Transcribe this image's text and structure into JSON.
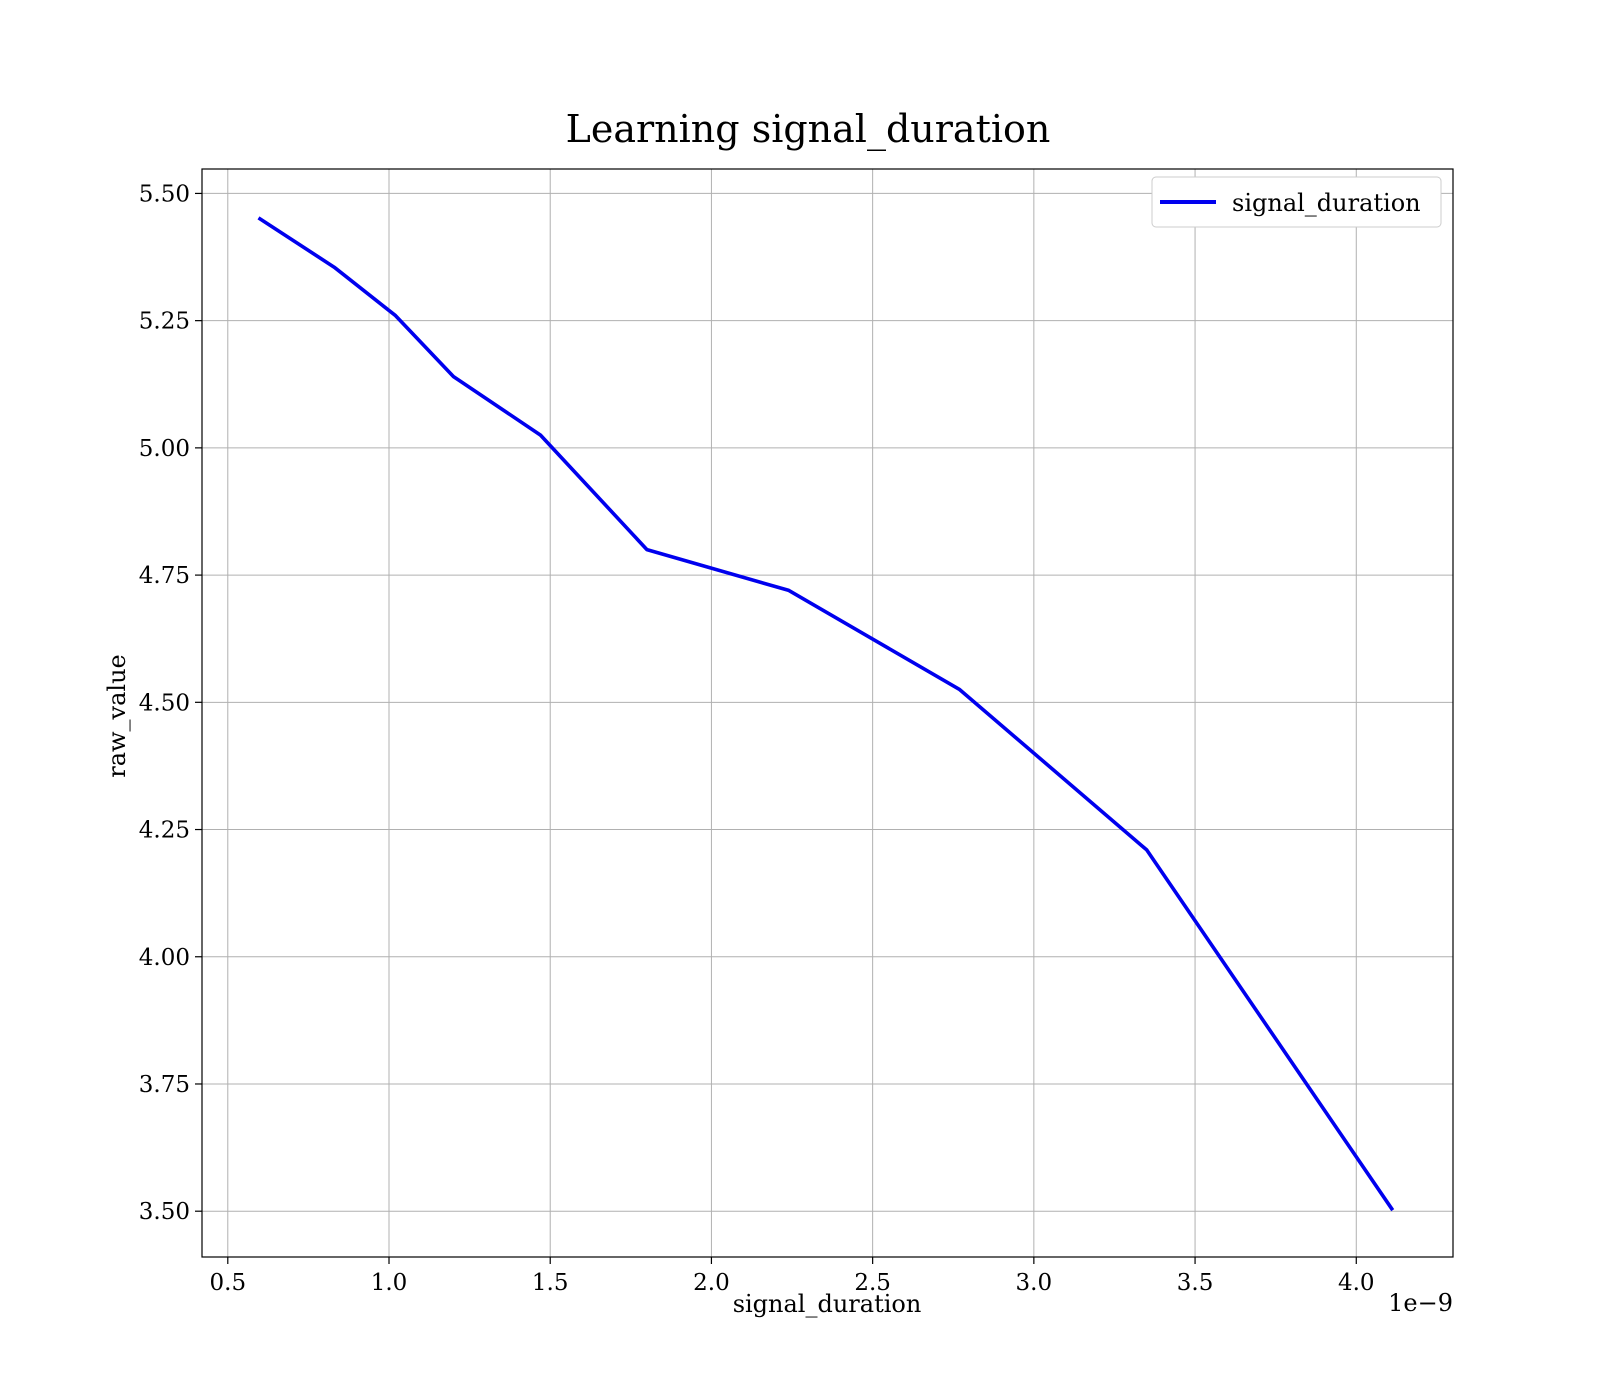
{
  "chart_data": {
    "type": "line",
    "title": "Learning signal_duration",
    "xlabel": "signal_duration",
    "ylabel": "raw_value",
    "x_offset_label": "1e−9",
    "xlim": [
      4.2e-10,
      4.3e-09
    ],
    "ylim": [
      3.41,
      5.548
    ],
    "x_ticks": [
      5e-10,
      1e-09,
      1.5e-09,
      2e-09,
      2.5e-09,
      3e-09,
      3.5e-09,
      4e-09
    ],
    "x_tick_labels": [
      "0.5",
      "1.0",
      "1.5",
      "2.0",
      "2.5",
      "3.0",
      "3.5",
      "4.0"
    ],
    "y_ticks": [
      3.5,
      3.75,
      4.0,
      4.25,
      4.5,
      4.75,
      5.0,
      5.25,
      5.5
    ],
    "y_tick_labels": [
      "3.50",
      "3.75",
      "4.00",
      "4.25",
      "4.50",
      "4.75",
      "5.00",
      "5.25",
      "5.50"
    ],
    "grid": true,
    "legend_position": "top-right",
    "series": [
      {
        "name": "signal_duration",
        "color": "#0000ee",
        "x": [
          6e-10,
          8.3e-10,
          1.02e-09,
          1.2e-09,
          1.47e-09,
          1.8e-09,
          2.24e-09,
          2.77e-09,
          3.35e-09,
          4.11e-09
        ],
        "y": [
          5.45,
          5.355,
          5.26,
          5.14,
          5.025,
          4.8,
          4.72,
          4.525,
          4.21,
          3.505
        ]
      }
    ]
  }
}
